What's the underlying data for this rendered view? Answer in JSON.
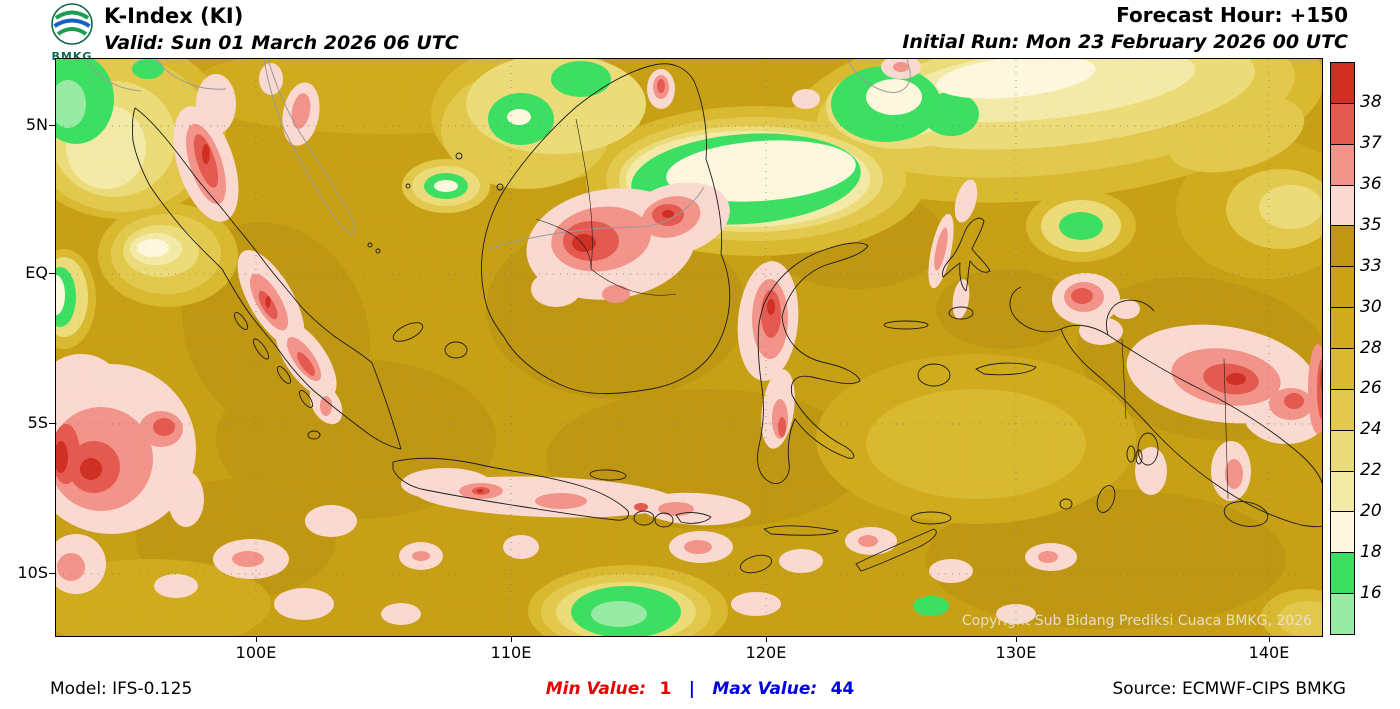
{
  "header": {
    "logo_text": "BMKG",
    "title": "K-Index (KI)",
    "valid_line": "Valid: Sun 01 March 2026 06 UTC",
    "forecast_hour_line": "Forecast Hour: +150",
    "initial_run_line": "Initial Run: Mon 23 February 2026 00 UTC"
  },
  "map": {
    "copyright": "Copyright Sub Bidang Prediksi Cuaca BMKG, 2026",
    "lat_ticks": [
      "5N",
      "EQ",
      "5S",
      "10S"
    ],
    "lon_ticks": [
      "100E",
      "110E",
      "120E",
      "130E",
      "140E"
    ]
  },
  "legend": {
    "boundary_labels": [
      "38",
      "37",
      "36",
      "35",
      "33",
      "30",
      "28",
      "26",
      "24",
      "22",
      "20",
      "18",
      "16"
    ],
    "band_colors_top_to_bottom": [
      "#d02f23",
      "#e55a50",
      "#f2948a",
      "#fad9d0",
      "#bf9712",
      "#c9a315",
      "#cfab1d",
      "#d8b92f",
      "#e2c94d",
      "#ecdc79",
      "#f4eaa8",
      "#fcf7dd",
      "#3ddf63",
      "#97eba5"
    ]
  },
  "footer": {
    "model": "Model: IFS-0.125",
    "min_label": "Min Value:",
    "min_value": "1",
    "separator": "|",
    "max_label": "Max Value:",
    "max_value": "44",
    "source": "Source: ECMWF-CIPS BMKG",
    "min_color": "#e60000",
    "max_color": "#0000e0"
  },
  "chart_data": {
    "type": "heatmap",
    "parameter": "K-Index (KI)",
    "legend_levels": [
      16,
      18,
      20,
      22,
      24,
      26,
      28,
      30,
      33,
      35,
      36,
      37,
      38
    ],
    "min_value": 1,
    "max_value": 44,
    "x_ticks": [
      "100E",
      "110E",
      "120E",
      "130E",
      "140E"
    ],
    "y_ticks": [
      "5N",
      "EQ",
      "5S",
      "10S"
    ]
  }
}
